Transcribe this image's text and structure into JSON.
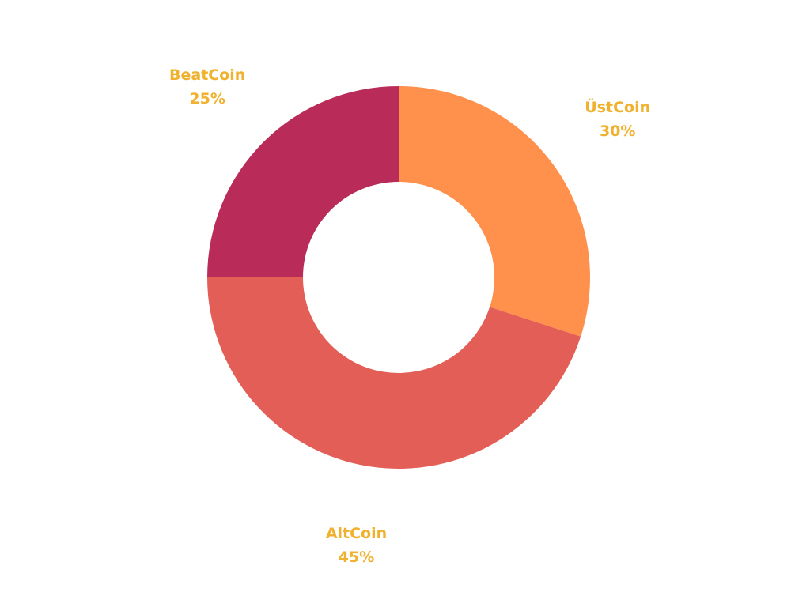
{
  "chart_data": {
    "type": "pie",
    "donut": true,
    "series": [
      {
        "name": "ÜstCoin",
        "value": 30,
        "label": "30%",
        "color": "#FF914D"
      },
      {
        "name": "AltCoin",
        "value": 45,
        "label": "45%",
        "color": "#E35E57"
      },
      {
        "name": "BeatCoin",
        "value": 25,
        "label": "25%",
        "color": "#B92C5A"
      }
    ],
    "label_color": "#F0B12E",
    "start": "12 o'clock",
    "direction": "clockwise",
    "legend": "none",
    "title": ""
  }
}
